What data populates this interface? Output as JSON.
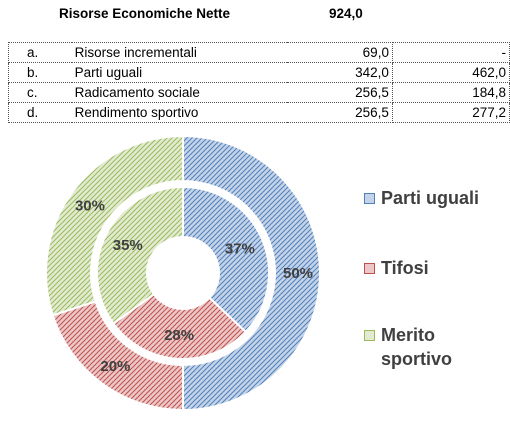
{
  "header": {
    "title": "Risorse Economiche Nette",
    "total": "924,0"
  },
  "table": {
    "rows": [
      {
        "code": "a.",
        "label": "Risorse incrementali",
        "v1": "69,0",
        "v2": "-"
      },
      {
        "code": "b.",
        "label": "Parti uguali",
        "v1": "342,0",
        "v2": "462,0"
      },
      {
        "code": "c.",
        "label": "Radicamento sociale",
        "v1": "256,5",
        "v2": "184,8"
      },
      {
        "code": "d.",
        "label": "Rendimento sportivo",
        "v1": "256,5",
        "v2": "277,2"
      }
    ]
  },
  "legend": [
    {
      "label": "Parti uguali"
    },
    {
      "label": "Tifosi"
    },
    {
      "label": "Merito sportivo"
    }
  ],
  "chart_data": {
    "type": "doughnut",
    "categories": [
      "Parti uguali",
      "Tifosi",
      "Merito sportivo"
    ],
    "colors": [
      "#4f81bd",
      "#c0504d",
      "#9bbb59"
    ],
    "series": [
      {
        "ring": "inner",
        "values": [
          37,
          28,
          35
        ],
        "labels": [
          "37%",
          "28%",
          "35%"
        ]
      },
      {
        "ring": "outer",
        "values": [
          50,
          20,
          30
        ],
        "labels": [
          "50%",
          "20%",
          "30%"
        ]
      }
    ],
    "legend_position": "right"
  }
}
